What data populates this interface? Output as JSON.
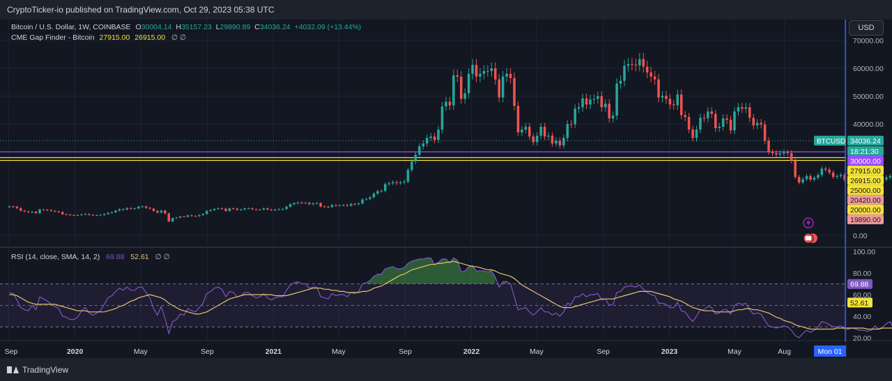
{
  "header": {
    "published": "CryptoTicker-io published on TradingView.com, Oct 29, 2023 05:38 UTC"
  },
  "legend": {
    "symbol": "Bitcoin / U.S. Dollar, 1W, COINBASE",
    "o_label": "O",
    "o_value": "30004.14",
    "h_label": "H",
    "h_value": "35157.23",
    "l_label": "L",
    "l_value": "29890.89",
    "c_label": "C",
    "c_value": "34036.24",
    "change": "+4032.09 (+13.44%)",
    "indicator_name": "CME Gap Finder - Bitcoin",
    "indicator_v1": "27915.00",
    "indicator_v2": "26915.00",
    "indicator_icons": "∅  ∅"
  },
  "rsi_legend": {
    "name": "RSI (14, close, SMA, 14, 2)",
    "rsi_value": "69.88",
    "ma_value": "52.61",
    "icons": "∅  ∅"
  },
  "currency_button": "USD",
  "footer": {
    "brand": "TradingView"
  },
  "colors": {
    "background": "#1e222d",
    "up": "#26a69a",
    "down": "#ef5350",
    "gap_line": "#f2e23a",
    "level_30000": "#9c4dff",
    "rsi": "#7e57c2",
    "rsi_ma": "#e6c76a",
    "crosshair": "#2962ff"
  },
  "chart_data": [
    {
      "type": "candlestick",
      "symbol": "BTCUSD",
      "timeframe": "1W",
      "y_ticks": [
        "70000.00",
        "60000.00",
        "50000.00",
        "40000.00",
        "0.00"
      ],
      "y_tick_values": [
        70000,
        60000,
        50000,
        40000,
        0
      ],
      "ylim": [
        -3000,
        75000
      ],
      "x_ticks": [
        "Sep",
        "2020",
        "May",
        "Sep",
        "2021",
        "May",
        "Sep",
        "2022",
        "May",
        "Sep",
        "2023",
        "May",
        "Aug"
      ],
      "x_tick_dates": [
        "2019-09-01",
        "2020-01-01",
        "2020-05-01",
        "2020-09-01",
        "2021-01-01",
        "2021-05-01",
        "2021-09-01",
        "2022-01-01",
        "2022-05-01",
        "2022-09-01",
        "2023-01-01",
        "2023-05-01",
        "2023-08-01"
      ],
      "x_range": [
        "2019-08-26",
        "2023-11-20"
      ],
      "crosshair_label": "Mon 01",
      "horizontal_lines": [
        {
          "value": 30000,
          "label": "30000.00",
          "color": "#9c4dff"
        },
        {
          "value": 27915,
          "label": "27915.00",
          "color": "#f2e23a"
        },
        {
          "value": 26915,
          "label": "26915.00",
          "color": "#f2e23a"
        }
      ],
      "price_labels": [
        {
          "label": "BTCUSD",
          "value": 34036.24,
          "text": "34036.24",
          "bg": "#26a69a"
        },
        {
          "label": "",
          "value": null,
          "text": "18:21:30",
          "bg": "#26a69a"
        },
        {
          "label": "",
          "value": 30000,
          "text": "30000.00",
          "bg": "#9c4dff"
        },
        {
          "label": "",
          "value": 27915,
          "text": "27915.00",
          "bg": "#f2e23a"
        },
        {
          "label": "",
          "value": 26915,
          "text": "26915.00",
          "bg": "#f2e23a"
        },
        {
          "label": "",
          "value": 25000,
          "text": "25000.00",
          "bg": "#f2e23a"
        },
        {
          "label": "",
          "value": 20420,
          "text": "20420.00",
          "bg": "#ef9a9a"
        },
        {
          "label": "",
          "value": 20000,
          "text": "20000.00",
          "bg": "#f2e23a"
        },
        {
          "label": "",
          "value": 19890,
          "text": "19890.00",
          "bg": "#ef9a9a"
        }
      ],
      "series": [
        {
          "date": "2019-09-02",
          "closes": [
            10400,
            10300,
            9800,
            8900,
            8600,
            8300,
            8500,
            8000,
            9300,
            9200,
            9100,
            8800,
            8600,
            8400,
            7600,
            7500,
            7300,
            7250,
            7300,
            7550,
            7700,
            7400,
            7200,
            7300,
            7350,
            7700,
            8100,
            8300,
            8900,
            9400,
            9300,
            9800,
            9600,
            9700,
            10300,
            10400,
            9900,
            9600,
            8800,
            8200,
            8900,
            7900,
            5000,
            6200,
            6400,
            6800,
            6700,
            7200,
            7000,
            6900,
            7300,
            7700,
            8800,
            9100,
            9500,
            9700,
            9600,
            8800,
            9700,
            9600,
            9200,
            9300,
            9700,
            9700,
            9400,
            9200,
            9300,
            9700,
            9300,
            9100,
            9300,
            9400,
            9500,
            10300,
            11200,
            11600,
            11800,
            11700,
            11700,
            11200,
            11500,
            11600,
            10400,
            10300,
            10200,
            10900,
            10700,
            10800,
            10900,
            10700,
            11300,
            11200,
            11500,
            12900,
            13100,
            13700,
            15000,
            15900,
            16000,
            18400,
            18700,
            19100,
            18800,
            19000,
            19300,
            23500,
            26500,
            29000,
            32000,
            33000,
            35000,
            35500,
            34300,
            38000,
            46300,
            48000,
            46700,
            57500,
            57000,
            49000,
            51000,
            58000,
            61200,
            57000,
            58000,
            59000,
            59000,
            60000,
            56000,
            49500,
            57000,
            58000,
            56500,
            46500,
            37000,
            38000,
            39000,
            35500,
            33500,
            35800,
            39000,
            35500,
            35800,
            33000,
            34000,
            32300,
            35000,
            40000,
            39900,
            45500,
            46000,
            49200,
            47000,
            48800,
            49000,
            50000,
            46000,
            47300,
            42000,
            43000,
            54500,
            55500,
            60900,
            61500,
            61300,
            61000,
            63300,
            60600,
            58500,
            57000,
            56000,
            49500,
            50100,
            49000,
            47000,
            46700,
            50600,
            43200,
            42500,
            38000,
            35000,
            38000,
            42200,
            42100,
            44500,
            43600,
            38500,
            39000,
            42000,
            41500,
            37700,
            44500,
            46000,
            45500,
            46000,
            42200,
            39500,
            40400,
            39800,
            34000,
            30000,
            29500,
            29000,
            29400,
            29800,
            29500,
            26800,
            21000,
            19000,
            20200,
            21300,
            20000,
            20700,
            21700,
            24000,
            23600,
            22600,
            21000,
            21300,
            21700,
            20000,
            19800,
            20300,
            19900,
            19300,
            19300,
            19000,
            19200,
            20500,
            19100,
            20100,
            20800,
            21300,
            16800,
            16400,
            16000,
            16500,
            16800,
            17000,
            16700,
            16800,
            16900,
            17100,
            16600,
            16900,
            17200,
            21000,
            22500,
            23100,
            23700,
            22700,
            21900,
            24300,
            23200,
            23400,
            22300,
            20600,
            27500,
            28000,
            28100,
            28400,
            30500,
            29300,
            27500,
            29200,
            28000,
            26800,
            27100,
            26800,
            27200,
            26000,
            26500,
            28000,
            30500,
            30600,
            30300,
            30100,
            30600,
            29900,
            29400,
            29300,
            29700,
            29300,
            29100,
            29200,
            26100,
            26200,
            26000,
            25800,
            26000,
            25900,
            26500,
            26900,
            26200,
            26700,
            27200,
            27000,
            27900,
            29800,
            34000
          ]
        }
      ]
    },
    {
      "type": "line",
      "title": "RSI (14, close, SMA, 14, 2)",
      "y_ticks": [
        "100.00",
        "80.00",
        "60.00",
        "40.00",
        "20.00"
      ],
      "y_tick_values": [
        100,
        80,
        60,
        40,
        20
      ],
      "ylim": [
        18,
        102
      ],
      "bands": [
        70,
        50,
        30
      ],
      "last_values": {
        "rsi": 69.88,
        "rsi_ma": 52.61
      },
      "series": [
        {
          "name": "RSI",
          "values": [
            62,
            61,
            55,
            48,
            46,
            45,
            50,
            46,
            58,
            56,
            54,
            51,
            49,
            47,
            40,
            39,
            37,
            37,
            39,
            45,
            48,
            43,
            41,
            43,
            45,
            51,
            57,
            59,
            63,
            66,
            64,
            67,
            64,
            64,
            67,
            67,
            62,
            57,
            47,
            41,
            49,
            38,
            24,
            35,
            37,
            42,
            41,
            47,
            45,
            44,
            48,
            52,
            61,
            63,
            66,
            67,
            65,
            58,
            63,
            62,
            58,
            59,
            62,
            62,
            59,
            57,
            58,
            61,
            57,
            55,
            57,
            58,
            58,
            64,
            69,
            71,
            72,
            70,
            70,
            66,
            67,
            67,
            58,
            57,
            56,
            61,
            59,
            60,
            60,
            58,
            62,
            61,
            63,
            70,
            71,
            73,
            77,
            79,
            79,
            84,
            85,
            86,
            84,
            84,
            85,
            89,
            91,
            92,
            93,
            93,
            94,
            94,
            88,
            90,
            93,
            93,
            90,
            94,
            92,
            81,
            82,
            86,
            87,
            82,
            82,
            82,
            81,
            82,
            76,
            67,
            72,
            72,
            70,
            58,
            46,
            47,
            48,
            44,
            41,
            44,
            48,
            44,
            44,
            41,
            43,
            40,
            44,
            52,
            51,
            58,
            58,
            61,
            58,
            60,
            60,
            61,
            55,
            56,
            50,
            51,
            62,
            63,
            67,
            68,
            68,
            67,
            69,
            65,
            62,
            60,
            59,
            52,
            52,
            51,
            48,
            48,
            53,
            45,
            44,
            39,
            35,
            40,
            46,
            46,
            49,
            48,
            42,
            43,
            46,
            46,
            42,
            50,
            52,
            51,
            52,
            46,
            42,
            43,
            42,
            36,
            31,
            30,
            29,
            30,
            31,
            30,
            27,
            22,
            20,
            24,
            27,
            25,
            27,
            30,
            35,
            34,
            32,
            30,
            30,
            31,
            28,
            28,
            29,
            28,
            27,
            27,
            26,
            27,
            31,
            28,
            30,
            33,
            35,
            27,
            26,
            25,
            27,
            28,
            29,
            28,
            29,
            29,
            30,
            29,
            29,
            40,
            44,
            46,
            48,
            46,
            45,
            51,
            48,
            49,
            47,
            43,
            57,
            58,
            59,
            60,
            63,
            61,
            57,
            61,
            58,
            55,
            56,
            55,
            56,
            53,
            54,
            57,
            61,
            62,
            61,
            60,
            62,
            59,
            58,
            57,
            58,
            57,
            56,
            56,
            46,
            46,
            45,
            44,
            45,
            45,
            47,
            48,
            47,
            48,
            50,
            50,
            52,
            59,
            70
          ]
        },
        {
          "name": "RSI-based MA",
          "values": [
            60,
            60,
            59,
            57,
            55,
            53,
            52,
            51,
            51,
            51,
            51,
            51,
            51,
            50,
            49,
            48,
            47,
            46,
            45,
            45,
            45,
            44,
            44,
            44,
            44,
            44,
            45,
            46,
            47,
            49,
            50,
            52,
            54,
            55,
            57,
            58,
            59,
            60,
            59,
            58,
            57,
            55,
            52,
            50,
            48,
            46,
            45,
            44,
            43,
            42,
            42,
            43,
            44,
            46,
            48,
            50,
            52,
            54,
            56,
            57,
            58,
            59,
            60,
            60,
            60,
            60,
            60,
            60,
            60,
            60,
            59,
            59,
            59,
            59,
            60,
            61,
            62,
            63,
            64,
            65,
            66,
            66,
            66,
            65,
            65,
            64,
            64,
            63,
            63,
            62,
            62,
            62,
            62,
            63,
            63,
            64,
            66,
            67,
            68,
            70,
            72,
            74,
            76,
            78,
            79,
            81,
            83,
            84,
            85,
            86,
            87,
            88,
            88,
            89,
            89,
            90,
            90,
            91,
            90,
            89,
            88,
            87,
            86,
            86,
            85,
            84,
            83,
            83,
            82,
            80,
            79,
            78,
            77,
            75,
            72,
            69,
            67,
            65,
            63,
            61,
            59,
            57,
            55,
            53,
            51,
            49,
            48,
            48,
            48,
            49,
            50,
            51,
            52,
            53,
            54,
            55,
            56,
            56,
            56,
            56,
            57,
            58,
            59,
            60,
            61,
            62,
            63,
            63,
            63,
            63,
            62,
            61,
            60,
            59,
            58,
            56,
            55,
            54,
            52,
            50,
            48,
            47,
            46,
            45,
            45,
            45,
            44,
            44,
            44,
            44,
            44,
            45,
            46,
            46,
            47,
            47,
            46,
            46,
            45,
            44,
            43,
            41,
            39,
            38,
            36,
            35,
            34,
            32,
            31,
            30,
            29,
            28,
            28,
            28,
            28,
            28,
            28,
            28,
            29,
            29,
            29,
            29,
            29,
            29,
            29,
            29,
            28,
            28,
            28,
            28,
            29,
            29,
            29,
            29,
            29,
            28,
            28,
            28,
            28,
            28,
            28,
            28,
            28,
            28,
            28,
            29,
            30,
            31,
            32,
            34,
            35,
            37,
            38,
            40,
            41,
            42,
            44,
            46,
            48,
            50,
            52,
            54,
            55,
            56,
            56,
            57,
            57,
            57,
            57,
            57,
            57,
            57,
            57,
            58,
            58,
            58,
            58,
            58,
            58,
            58,
            58,
            58,
            58,
            57,
            57,
            56,
            55,
            55,
            54,
            53,
            52,
            51,
            50,
            49,
            48,
            47,
            47,
            47,
            48,
            49,
            50,
            51,
            52
          ]
        }
      ]
    }
  ]
}
